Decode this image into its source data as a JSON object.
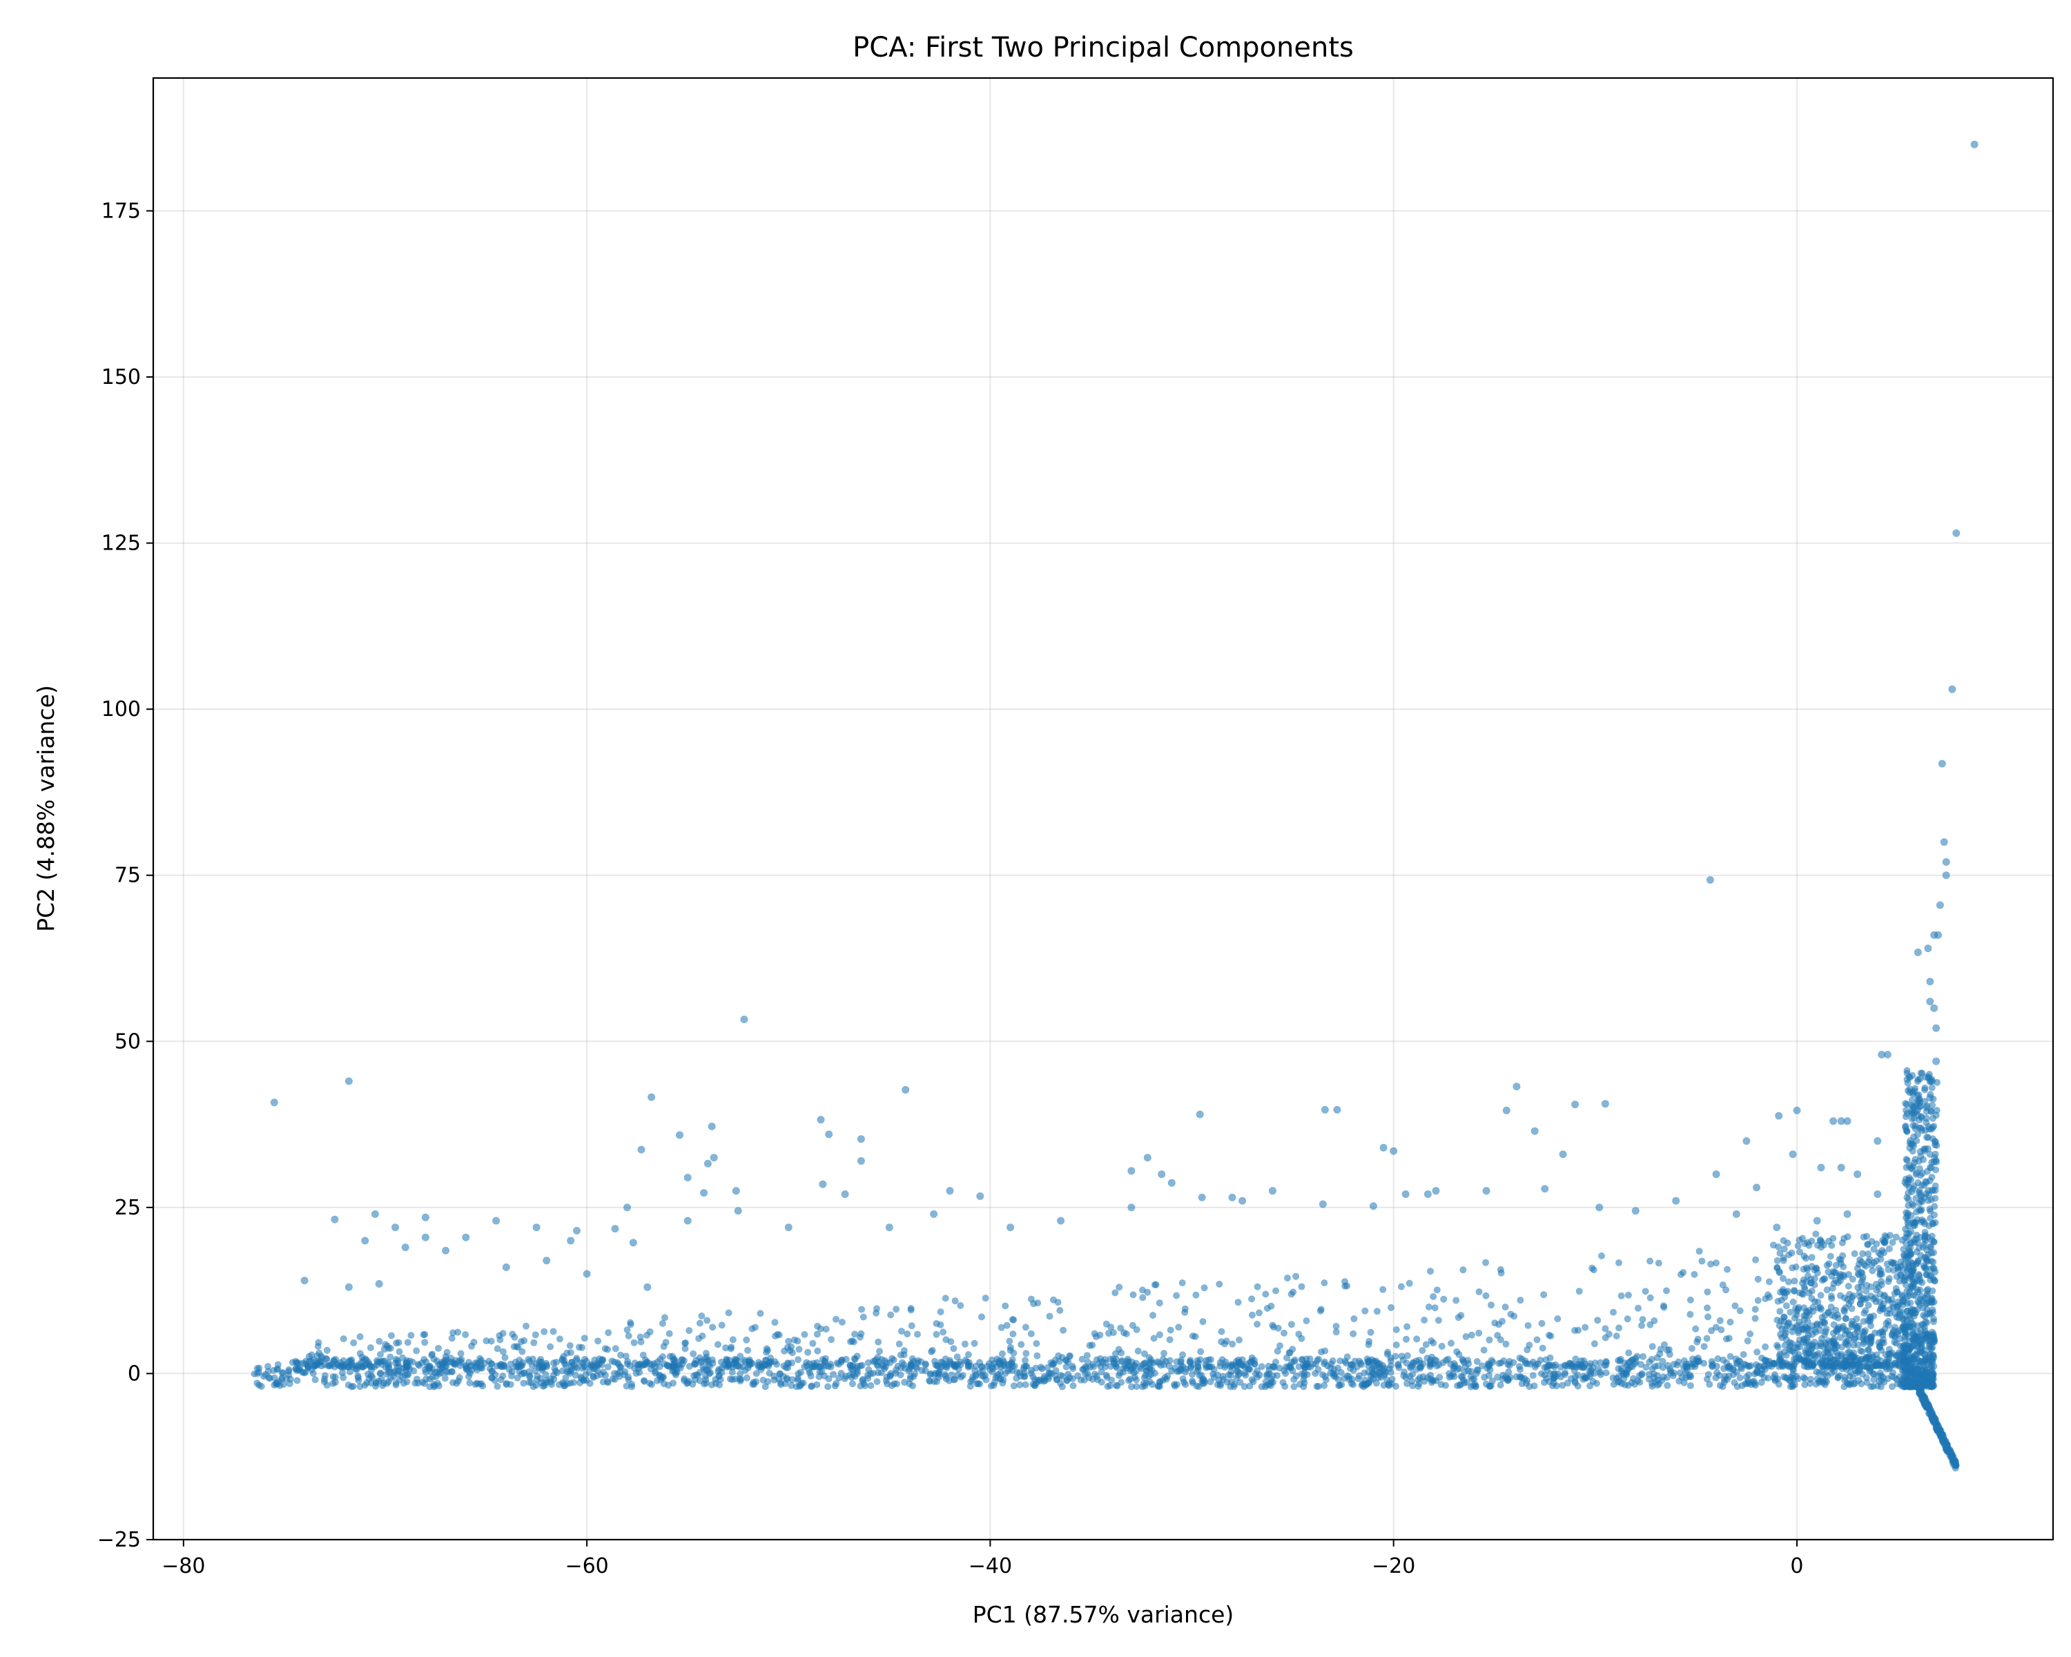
{
  "chart_data": {
    "type": "scatter",
    "title": "PCA: First Two Principal Components",
    "xlabel": "PC1 (87.57% variance)",
    "ylabel": "PC2 (4.88% variance)",
    "xlim": [
      -81.5,
      12.7
    ],
    "ylim": [
      -25,
      195
    ],
    "xticks": [
      -80,
      -60,
      -40,
      -20,
      0
    ],
    "yticks": [
      -25,
      0,
      25,
      50,
      75,
      100,
      125,
      150,
      175
    ],
    "xtick_labels": [
      "−80",
      "−60",
      "−40",
      "−20",
      "0"
    ],
    "ytick_labels": [
      "−25",
      "0",
      "25",
      "50",
      "75",
      "100",
      "125",
      "150",
      "175"
    ],
    "grid": true,
    "point_color": "#1f77b4",
    "point_alpha": 0.55,
    "series": [
      {
        "points": [
          [
            8.8,
            185
          ],
          [
            7.9,
            126.5
          ],
          [
            7.7,
            103
          ],
          [
            7.2,
            91.8
          ],
          [
            7.3,
            80
          ],
          [
            7.4,
            77
          ],
          [
            7.4,
            75
          ],
          [
            7.1,
            70.5
          ],
          [
            7.0,
            66
          ],
          [
            6.8,
            66
          ],
          [
            6.5,
            64
          ],
          [
            6.0,
            63.4
          ],
          [
            6.6,
            59
          ],
          [
            6.6,
            56
          ],
          [
            6.8,
            55
          ],
          [
            6.9,
            52
          ],
          [
            6.9,
            47
          ],
          [
            6.7,
            44
          ],
          [
            6.6,
            41.5
          ],
          [
            4.5,
            48
          ],
          [
            4.2,
            48
          ],
          [
            -4.3,
            74.3
          ],
          [
            4.0,
            35
          ],
          [
            2.5,
            38
          ],
          [
            2.2,
            38
          ],
          [
            1.8,
            38
          ],
          [
            0.0,
            39.6
          ],
          [
            -0.9,
            38.8
          ],
          [
            -4.0,
            30
          ],
          [
            -2.5,
            35
          ],
          [
            -2.0,
            28
          ],
          [
            -0.2,
            33
          ],
          [
            1.2,
            31
          ],
          [
            2.2,
            31
          ],
          [
            3.0,
            30
          ],
          [
            4.0,
            27
          ],
          [
            -52.2,
            53.3
          ],
          [
            -71.8,
            44
          ],
          [
            -75.5,
            40.8
          ],
          [
            -56.8,
            41.6
          ],
          [
            -44.2,
            42.7
          ],
          [
            -53.8,
            37.2
          ],
          [
            -48.4,
            38.2
          ],
          [
            -48.0,
            36
          ],
          [
            -46.4,
            35.3
          ],
          [
            -55.4,
            35.9
          ],
          [
            -57.3,
            33.7
          ],
          [
            -53.7,
            32.5
          ],
          [
            -54.0,
            31.6
          ],
          [
            -48.3,
            28.5
          ],
          [
            -46.4,
            32
          ],
          [
            -55.0,
            29.5
          ],
          [
            -52.6,
            27.5
          ],
          [
            -47.2,
            27
          ],
          [
            -54.2,
            27.2
          ],
          [
            -42.0,
            27.5
          ],
          [
            -40.5,
            26.7
          ],
          [
            -32.2,
            32.5
          ],
          [
            -33.0,
            30.5
          ],
          [
            -31.5,
            30
          ],
          [
            -31.0,
            28.7
          ],
          [
            -29.6,
            39
          ],
          [
            -23.4,
            39.7
          ],
          [
            -22.8,
            39.7
          ],
          [
            -20.5,
            34
          ],
          [
            -20.0,
            33.5
          ],
          [
            -13.9,
            43.2
          ],
          [
            -14.4,
            39.6
          ],
          [
            -11.0,
            40.5
          ],
          [
            -9.5,
            40.6
          ],
          [
            -13.0,
            36.5
          ],
          [
            -11.6,
            33
          ],
          [
            -15.4,
            27.5
          ],
          [
            -17.9,
            27.5
          ],
          [
            -18.3,
            27
          ],
          [
            -19.4,
            27
          ],
          [
            -21.0,
            25.2
          ],
          [
            -23.5,
            25.5
          ],
          [
            -26.0,
            27.5
          ],
          [
            -27.5,
            26
          ],
          [
            -28.0,
            26.5
          ],
          [
            -29.5,
            26.5
          ],
          [
            -33.0,
            25
          ],
          [
            -36.5,
            23
          ],
          [
            -39.0,
            22
          ],
          [
            -42.8,
            24
          ],
          [
            -45.0,
            22
          ],
          [
            -50.0,
            22
          ],
          [
            -52.5,
            24.5
          ],
          [
            -55.0,
            23
          ],
          [
            -58.0,
            25
          ],
          [
            -60.5,
            21.5
          ],
          [
            -62.5,
            22
          ],
          [
            -64.5,
            23
          ],
          [
            -68.0,
            23.5
          ],
          [
            -70.5,
            24
          ],
          [
            -72.5,
            23.2
          ],
          [
            -71.0,
            20
          ],
          [
            -69.5,
            22
          ],
          [
            -68.0,
            20.5
          ],
          [
            -66.0,
            20.5
          ],
          [
            -62.0,
            17
          ],
          [
            -70.3,
            13.5
          ],
          [
            -71.8,
            13
          ],
          [
            -74.0,
            14
          ],
          [
            -69.0,
            19
          ],
          [
            -67.0,
            18.5
          ],
          [
            -64.0,
            16
          ],
          [
            -60.0,
            15
          ],
          [
            -57.0,
            13
          ],
          [
            -12.5,
            27.8
          ],
          [
            -9.8,
            25
          ],
          [
            -8.0,
            24.5
          ],
          [
            -6.0,
            26
          ],
          [
            -3.0,
            24
          ],
          [
            -1.0,
            22
          ],
          [
            1.0,
            23
          ],
          [
            2.5,
            24
          ],
          [
            -60.8,
            20
          ],
          [
            -58.6,
            21.8
          ],
          [
            -57.7,
            19.7
          ]
        ]
      }
    ]
  }
}
